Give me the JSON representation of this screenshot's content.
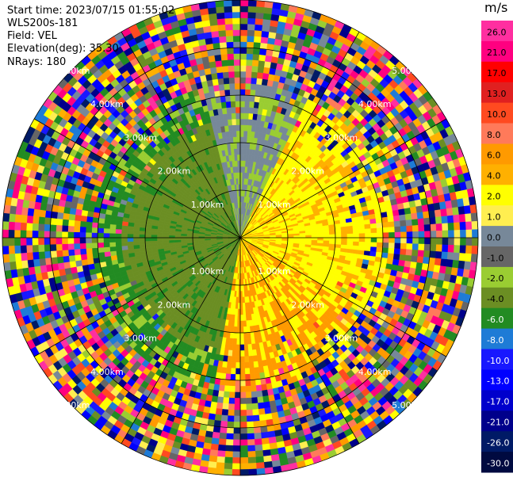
{
  "header": {
    "start_time": "Start time: 2023/07/15 01:55:02",
    "instrument": "WLS200s-181",
    "field": "Field: VEL",
    "elevation": "Elevation(deg): 35.30",
    "nrays": "NRays: 180"
  },
  "ppi": {
    "range_labels": [
      "1.00km",
      "2.00km",
      "3.00km",
      "4.00km",
      "5.00km"
    ],
    "max_range_km": 5,
    "nrays": 180
  },
  "colorbar": {
    "unit": "m/s",
    "ticks": [
      "26.0",
      "21.0",
      "17.0",
      "13.0",
      "10.0",
      "8.0",
      "6.0",
      "4.0",
      "2.0",
      "1.0",
      "0.0",
      "-1.0",
      "-2.0",
      "-4.0",
      "-6.0",
      "-8.0",
      "-10.0",
      "-13.0",
      "-17.0",
      "-21.0",
      "-26.0",
      "-30.0"
    ],
    "colors": [
      "#ff2fa0",
      "#ff0080",
      "#ff0000",
      "#e02020",
      "#ff4a20",
      "#ff7a5a",
      "#ff9a00",
      "#ffb000",
      "#ffff00",
      "#ffee50",
      "#778899",
      "#666666",
      "#9acd32",
      "#6b8e23",
      "#228b22",
      "#1e7bd6",
      "#1818ff",
      "#0000ff",
      "#0000cc",
      "#00008b",
      "#001a66",
      "#000a40"
    ]
  }
}
